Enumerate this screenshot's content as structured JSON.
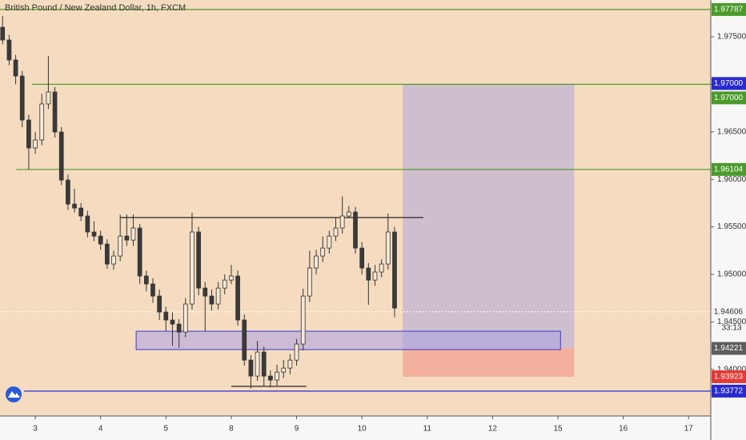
{
  "chart_data": {
    "type": "candlestick",
    "title": "British Pound / New Zealand Dollar, 1h, FXCM",
    "up_color": "#f7e8d6",
    "down_color": "#3a3a3a",
    "xlim": [
      -0.54,
      10.34
    ],
    "ylim": [
      1.9351,
      1.97887
    ],
    "xticks": [
      {
        "value": 0,
        "label": "3"
      },
      {
        "value": 1,
        "label": "4"
      },
      {
        "value": 2,
        "label": "5"
      },
      {
        "value": 3,
        "label": "8"
      },
      {
        "value": 4,
        "label": "9"
      },
      {
        "value": 5,
        "label": "10"
      },
      {
        "value": 6,
        "label": "11"
      },
      {
        "value": 7,
        "label": "12"
      },
      {
        "value": 8,
        "label": "15"
      },
      {
        "value": 9,
        "label": "16"
      },
      {
        "value": 10,
        "label": "17"
      }
    ],
    "yticks": [
      {
        "value": 1.975,
        "label": "1.97500"
      },
      {
        "value": 1.97,
        "label": "1.97000"
      },
      {
        "value": 1.965,
        "label": "1.96500"
      },
      {
        "value": 1.96,
        "label": "1.96000"
      },
      {
        "value": 1.955,
        "label": "1.95500"
      },
      {
        "value": 1.95,
        "label": "1.95000"
      },
      {
        "value": 1.945,
        "label": "1.94500"
      },
      {
        "value": 1.94,
        "label": "1.94000"
      }
    ],
    "x": [
      -0.5,
      -0.4,
      -0.3,
      -0.2,
      -0.1,
      0,
      0.1,
      0.2,
      0.3,
      0.4,
      0.5,
      0.6,
      0.7,
      0.8,
      0.9,
      1,
      1.1,
      1.2,
      1.3,
      1.4,
      1.5,
      1.6,
      1.7,
      1.8,
      1.9,
      2,
      2.1,
      2.2,
      2.3,
      2.4,
      2.5,
      2.6,
      2.7,
      2.8,
      2.9,
      3,
      3.1,
      3.2,
      3.3,
      3.4,
      3.5,
      3.6,
      3.7,
      3.8,
      3.9,
      4,
      4.1,
      4.2,
      4.3,
      4.4,
      4.5,
      4.6,
      4.7,
      4.8,
      4.9,
      5,
      5.1,
      5.2,
      5.3,
      5.4,
      5.5
    ],
    "ohlc": [
      [
        1.976,
        1.9772,
        1.9742,
        1.97466
      ],
      [
        1.97466,
        1.9752,
        1.972,
        1.97256
      ],
      [
        1.97256,
        1.9731,
        1.97,
        1.97087
      ],
      [
        1.97087,
        1.9714,
        1.9655,
        1.96624
      ],
      [
        1.96624,
        1.9668,
        1.961,
        1.9633
      ],
      [
        1.9633,
        1.965,
        1.9627,
        1.96414
      ],
      [
        1.96414,
        1.969,
        1.9636,
        1.96793
      ],
      [
        1.96793,
        1.973,
        1.9674,
        1.96919
      ],
      [
        1.96919,
        1.9697,
        1.9644,
        1.96498
      ],
      [
        1.96498,
        1.9655,
        1.9594,
        1.95993
      ],
      [
        1.95993,
        1.9605,
        1.9568,
        1.9574
      ],
      [
        1.9574,
        1.959,
        1.9565,
        1.95698
      ],
      [
        1.95698,
        1.9575,
        1.9556,
        1.95614
      ],
      [
        1.95614,
        1.9567,
        1.9539,
        1.95446
      ],
      [
        1.95446,
        1.9556,
        1.9535,
        1.95403
      ],
      [
        1.95403,
        1.9546,
        1.9526,
        1.95319
      ],
      [
        1.95319,
        1.9537,
        1.9506,
        1.95109
      ],
      [
        1.95109,
        1.9525,
        1.9505,
        1.95193
      ],
      [
        1.95193,
        1.9563,
        1.9514,
        1.95403
      ],
      [
        1.95403,
        1.9563,
        1.953,
        1.95361
      ],
      [
        1.95361,
        1.9563,
        1.953,
        1.95488
      ],
      [
        1.95488,
        1.9553,
        1.949,
        1.94983
      ],
      [
        1.94983,
        1.9504,
        1.9482,
        1.94899
      ],
      [
        1.94899,
        1.9496,
        1.947,
        1.94772
      ],
      [
        1.94772,
        1.9484,
        1.9452,
        1.94604
      ],
      [
        1.94604,
        1.9466,
        1.944,
        1.9452
      ],
      [
        1.9452,
        1.946,
        1.9425,
        1.94477
      ],
      [
        1.94477,
        1.9453,
        1.9423,
        1.94393
      ],
      [
        1.94393,
        1.9475,
        1.9434,
        1.94688
      ],
      [
        1.94688,
        1.9565,
        1.9463,
        1.95446
      ],
      [
        1.95446,
        1.955,
        1.9478,
        1.94856
      ],
      [
        1.94856,
        1.9492,
        1.944,
        1.94772
      ],
      [
        1.94772,
        1.9484,
        1.9462,
        1.94688
      ],
      [
        1.94688,
        1.9492,
        1.9463,
        1.94856
      ],
      [
        1.94856,
        1.95,
        1.9479,
        1.9494
      ],
      [
        1.9494,
        1.951,
        1.949,
        1.94983
      ],
      [
        1.94983,
        1.9504,
        1.9446,
        1.9452
      ],
      [
        1.9452,
        1.9458,
        1.9404,
        1.94098
      ],
      [
        1.94098,
        1.9415,
        1.938,
        1.9393
      ],
      [
        1.9393,
        1.943,
        1.9388,
        1.94183
      ],
      [
        1.94183,
        1.9424,
        1.9382,
        1.9393
      ],
      [
        1.9393,
        1.9399,
        1.9381,
        1.93888
      ],
      [
        1.93888,
        1.9405,
        1.9383,
        1.93972
      ],
      [
        1.93972,
        1.941,
        1.9391,
        1.94014
      ],
      [
        1.94014,
        1.9416,
        1.9395,
        1.94098
      ],
      [
        1.94098,
        1.9432,
        1.9404,
        1.94267
      ],
      [
        1.94267,
        1.9485,
        1.942,
        1.94772
      ],
      [
        1.94772,
        1.9525,
        1.9471,
        1.95067
      ],
      [
        1.95067,
        1.9526,
        1.95,
        1.95193
      ],
      [
        1.95193,
        1.954,
        1.9513,
        1.95277
      ],
      [
        1.95277,
        1.9546,
        1.9522,
        1.95403
      ],
      [
        1.95403,
        1.956,
        1.9535,
        1.95488
      ],
      [
        1.95488,
        1.9582,
        1.9543,
        1.95614
      ],
      [
        1.95614,
        1.9572,
        1.956,
        1.95656
      ],
      [
        1.95656,
        1.9571,
        1.9522,
        1.95277
      ],
      [
        1.95277,
        1.9534,
        1.95,
        1.95067
      ],
      [
        1.95067,
        1.9512,
        1.9468,
        1.9494
      ],
      [
        1.9494,
        1.951,
        1.9488,
        1.95025
      ],
      [
        1.95025,
        1.9516,
        1.9497,
        1.95109
      ],
      [
        1.95109,
        1.9564,
        1.9505,
        1.95446
      ],
      [
        1.95446,
        1.955,
        1.9455,
        1.94646
      ]
    ],
    "levels": [
      {
        "price": 1.97787,
        "color": "#4a9a2a",
        "from": -0.54
      },
      {
        "price": 1.97,
        "label": "1.97000",
        "color": "#4a9a2a",
        "from": -0.05
      },
      {
        "price": 1.96104,
        "color": "#4a9a2a",
        "from": -0.29
      },
      {
        "price": 1.93772,
        "color": "#2a2ad0",
        "from": -0.17
      }
    ],
    "trendlines": [
      {
        "price": 1.95598,
        "x": [
          1.3,
          5.94
        ]
      },
      {
        "price": 1.93822,
        "x": [
          3.0,
          4.15
        ]
      }
    ],
    "zone": {
      "low": 1.94209,
      "high": 1.94402,
      "x": [
        1.544,
        8.04
      ]
    },
    "position": {
      "x": [
        5.625,
        8.25
      ],
      "target": {
        "value": 1.97,
        "label": "1.97000"
      },
      "entry": 1.94221,
      "stop": 1.93923
    },
    "current": {
      "price": 1.94606,
      "countdown": "33:13"
    }
  }
}
